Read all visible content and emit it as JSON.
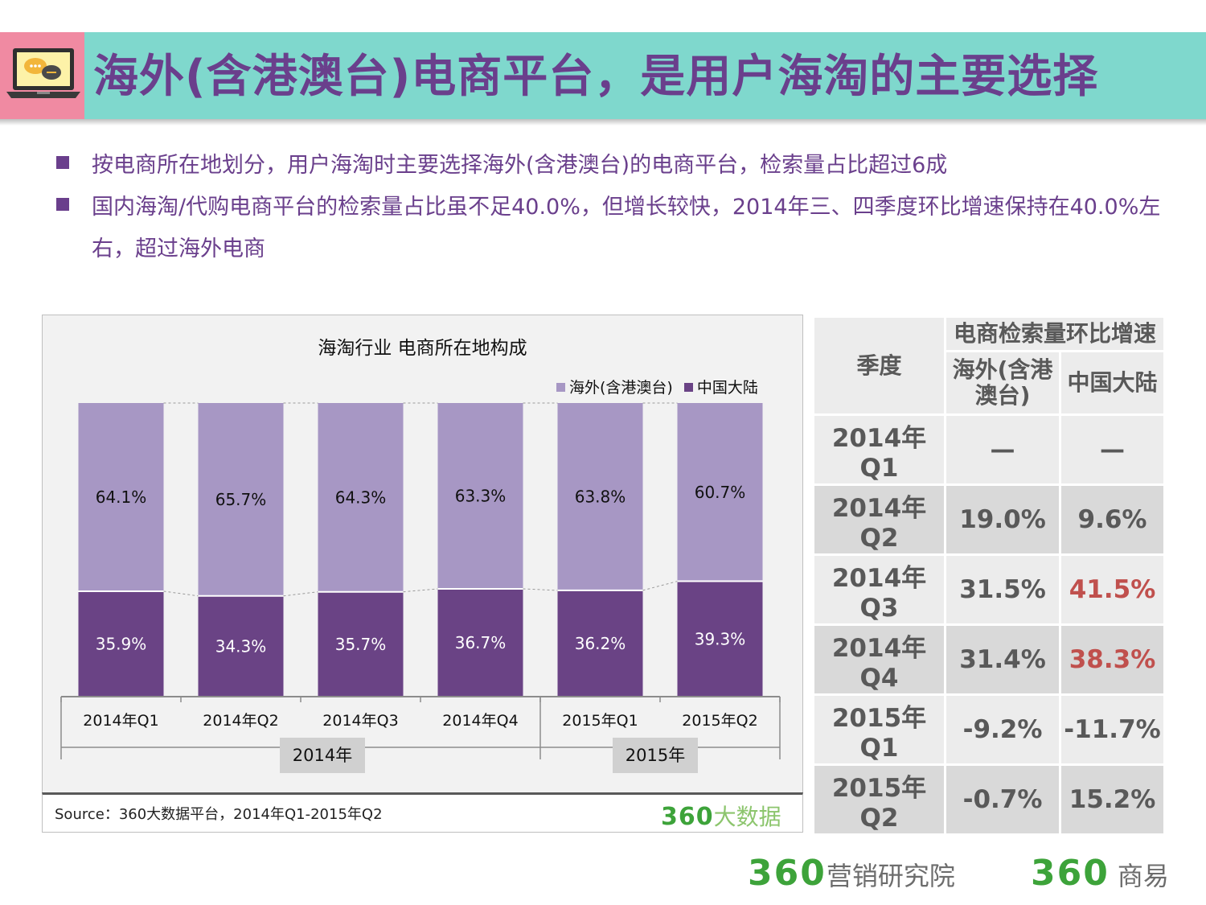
{
  "title": "海外(含港澳台)电商平台，是用户海淘的主要选择",
  "bullets": [
    "按电商所在地划分，用户海淘时主要选择海外(含港澳台)的电商平台，检索量占比超过6成",
    "国内海淘/代购电商平台的检索量占比虽不足40.0%，但增长较快，2014年三、四季度环比增速保持在40.0%左右，超过海外电商"
  ],
  "colors": {
    "overseas": "#a797c4",
    "mainland": "#6a4385",
    "accent": "#6a3f8c",
    "red": "#c0504d",
    "brand_green": "#3da33a"
  },
  "chart_data": {
    "type": "bar",
    "stacked": true,
    "title": "海淘行业 电商所在地构成",
    "categories": [
      "2014年Q1",
      "2014年Q2",
      "2014年Q3",
      "2014年Q4",
      "2015年Q1",
      "2015年Q2"
    ],
    "groups": [
      {
        "label": "2014年",
        "categories": [
          "2014年Q1",
          "2014年Q2",
          "2014年Q3",
          "2014年Q4"
        ]
      },
      {
        "label": "2015年",
        "categories": [
          "2015年Q1",
          "2015年Q2"
        ]
      }
    ],
    "series": [
      {
        "name": "中国大陆",
        "values": [
          35.9,
          34.3,
          35.7,
          36.7,
          36.2,
          39.3
        ],
        "labels": [
          "35.9%",
          "34.3%",
          "35.7%",
          "36.7%",
          "36.2%",
          "39.3%"
        ]
      },
      {
        "name": "海外(含港澳台)",
        "values": [
          64.1,
          65.7,
          64.3,
          63.3,
          63.8,
          60.7
        ],
        "labels": [
          "64.1%",
          "65.7%",
          "64.3%",
          "63.3%",
          "63.8%",
          "60.7%"
        ]
      }
    ],
    "legend": [
      "海外(含港澳台)",
      "中国大陆"
    ],
    "ylim": [
      0,
      100
    ]
  },
  "source": "Source：360大数据平台，2014年Q1-2015年Q2",
  "chart_brand": {
    "num": "360",
    "text": "大数据"
  },
  "table": {
    "header_quarter": "季度",
    "header_group": "电商检索量环比增速",
    "header_overseas": "海外(含港澳台)",
    "header_mainland": "中国大陆",
    "rows": [
      {
        "quarter": "2014年Q1",
        "overseas": "—",
        "mainland": "—"
      },
      {
        "quarter": "2014年Q2",
        "overseas": "19.0%",
        "mainland": "9.6%"
      },
      {
        "quarter": "2014年Q3",
        "overseas": "31.5%",
        "mainland": "41.5%"
      },
      {
        "quarter": "2014年Q4",
        "overseas": "31.4%",
        "mainland": "38.3%"
      },
      {
        "quarter": "2015年Q1",
        "overseas": "-9.2%",
        "mainland": "-11.7%"
      },
      {
        "quarter": "2015年Q2",
        "overseas": "-0.7%",
        "mainland": "15.2%"
      }
    ]
  },
  "footer": {
    "left_num": "360",
    "left_text": "营销研究院",
    "right_num": "360",
    "right_text": "商易"
  }
}
